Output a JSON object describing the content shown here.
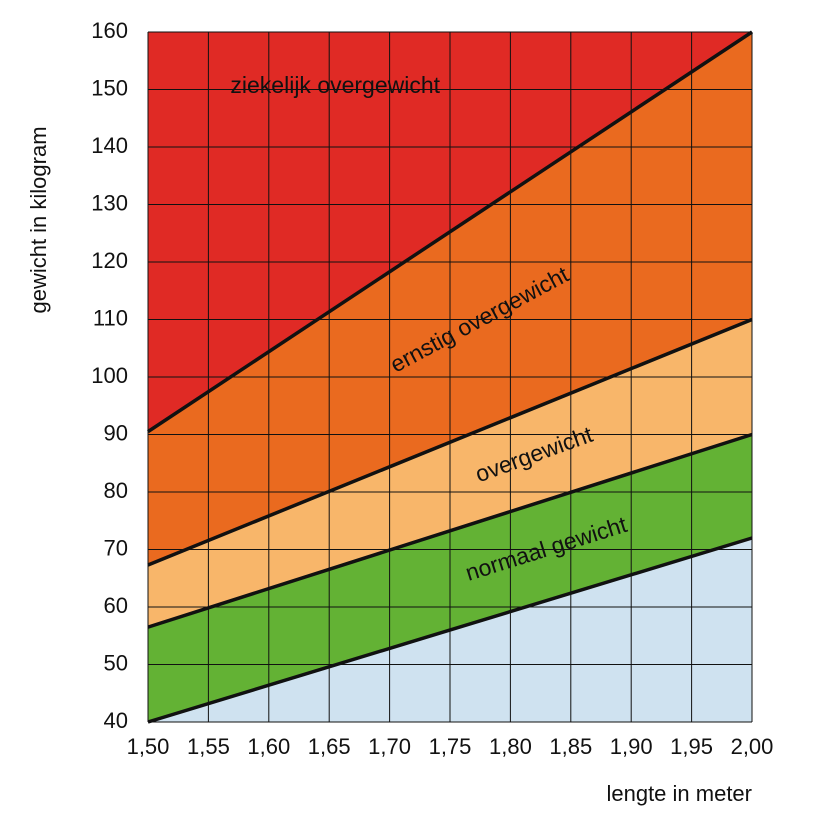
{
  "chart_data": {
    "type": "area",
    "x_label": "lengte in meter",
    "y_label": "gewicht in kilogram",
    "x": [
      1.5,
      2.0
    ],
    "series": [
      {
        "color": "#cfe2f0",
        "values": [
          40,
          72
        ]
      },
      {
        "name": "normaal gewicht",
        "color": "#63b234",
        "values": [
          56.5,
          90
        ]
      },
      {
        "name": "overgewicht",
        "color": "#f8b66a",
        "values": [
          67.3,
          110
        ]
      },
      {
        "name": "ernstig overgewicht",
        "color": "#ea6a1f",
        "values": [
          90.5,
          160
        ]
      },
      {
        "name": "ziekelijk overgewicht",
        "color": "#e02a25"
      }
    ],
    "xlim": [
      1.5,
      2.0
    ],
    "xticks": [
      {
        "value": 1.5,
        "label": "1,50"
      },
      {
        "value": 1.55,
        "label": "1,55"
      },
      {
        "value": 1.6,
        "label": "1,60"
      },
      {
        "value": 1.65,
        "label": "1,65"
      },
      {
        "value": 1.7,
        "label": "1,70"
      },
      {
        "value": 1.75,
        "label": "1,75"
      },
      {
        "value": 1.8,
        "label": "1,80"
      },
      {
        "value": 1.85,
        "label": "1,85"
      },
      {
        "value": 1.9,
        "label": "1,90"
      },
      {
        "value": 1.95,
        "label": "1,95"
      },
      {
        "value": 2.0,
        "label": "2,00"
      }
    ],
    "ylim": [
      40,
      160
    ],
    "yticks": [
      40,
      50,
      60,
      70,
      80,
      90,
      100,
      110,
      120,
      130,
      140,
      150,
      160
    ],
    "grid": true,
    "line_color": "#111111"
  }
}
